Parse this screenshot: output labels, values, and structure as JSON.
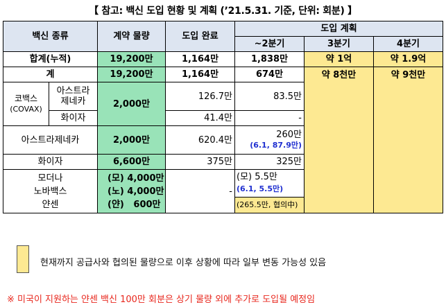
{
  "title": "【 참고: 백신 도입 현황 및 계획 (’21.5.31. 기준, 단위: 회분) 】",
  "headers": {
    "vaccine_type": "백신 종류",
    "contract": "계약 물량",
    "delivered": "도입 완료",
    "plan": "도입 계획",
    "q2": "~2분기",
    "q3": "3분기",
    "q4": "4분기"
  },
  "rows": {
    "total_cumulative": {
      "label": "합계(누적)",
      "contract": "19,200만",
      "delivered": "1,164만",
      "q2": "1,838만",
      "q3": "약 1억",
      "q4": "약 1.9억"
    },
    "subtotal": {
      "label": "계",
      "contract": "19,200만",
      "delivered": "1,164만",
      "q2": "674만",
      "q3": "약 8천만",
      "q4": "약 9천만"
    },
    "covax": {
      "label": "코백스",
      "label_sub": "(COVAX)",
      "contract": "2,000만",
      "astra": {
        "label_line1": "아스트라",
        "label_line2": "제네카",
        "delivered": "126.7만",
        "q2": "83.5만"
      },
      "pfizer": {
        "label": "화이자",
        "delivered": "41.4만",
        "q2": "-"
      }
    },
    "astrazeneca": {
      "label": "아스트라제네카",
      "contract": "2,000만",
      "delivered": "620.4만",
      "q2": "260만",
      "q2_note": "(6.1, 87.9만)"
    },
    "pfizer": {
      "label": "화이자",
      "contract": "6,600만",
      "delivered": "375만",
      "q2": "325만"
    },
    "others": {
      "label_moderna": "모더나",
      "label_novavax": "노바백스",
      "label_janssen": "얀센",
      "contract_moderna": "(모) 4,000만",
      "contract_novavax": "(노) 4,000만",
      "contract_janssen": "(얀)   600만",
      "delivered": "-",
      "q2_moderna": "(모) 5.5만",
      "q2_moderna_note": "(6.1, 5.5만)",
      "q2_janssen": "(265.5만, 협의中)"
    }
  },
  "legend": {
    "text": "현재까지 공급사와 협의된 물량으로 이후 상황에 따라 일부 변동 가능성 있음",
    "color": "#fde992"
  },
  "note": "※ 미국이 지원하는 얀센 백신 100만 회분은 상기 물량 외에 추가로 도입될 예정임",
  "colors": {
    "header": "#dde5f1",
    "green": "#99e3b8",
    "yellow": "#fde992",
    "note_red": "#e8271d",
    "note_blue": "#1f2fd0"
  }
}
